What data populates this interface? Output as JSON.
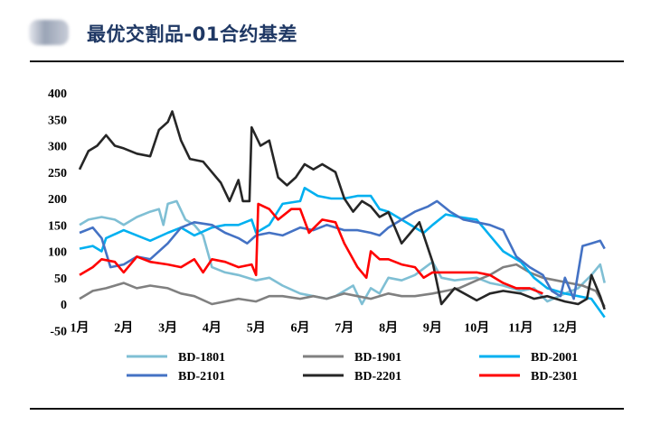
{
  "title": "最优交割品-01合约基差",
  "chart_data": {
    "type": "line",
    "title": "最优交割品-01合约基差",
    "xlabel": "",
    "ylabel": "",
    "ylim": [
      -50,
      400
    ],
    "yticks": [
      400,
      350,
      300,
      250,
      200,
      150,
      100,
      50,
      0,
      -50
    ],
    "xlim": [
      1,
      13
    ],
    "xticks": [
      {
        "x": 1,
        "label": "1月"
      },
      {
        "x": 2,
        "label": "2月"
      },
      {
        "x": 3,
        "label": "3月"
      },
      {
        "x": 4,
        "label": "4月"
      },
      {
        "x": 5,
        "label": "5月"
      },
      {
        "x": 6,
        "label": "6月"
      },
      {
        "x": 7,
        "label": "7月"
      },
      {
        "x": 8,
        "label": "8月"
      },
      {
        "x": 9,
        "label": "9月"
      },
      {
        "x": 10,
        "label": "10月"
      },
      {
        "x": 11,
        "label": "11月"
      },
      {
        "x": 12,
        "label": "12月"
      }
    ],
    "grid": false,
    "legend_position": "bottom",
    "series": [
      {
        "name": "BD-1801",
        "color": "#7fbfd4",
        "points": [
          [
            1.0,
            150
          ],
          [
            1.2,
            160
          ],
          [
            1.5,
            165
          ],
          [
            1.8,
            160
          ],
          [
            2.0,
            150
          ],
          [
            2.3,
            165
          ],
          [
            2.6,
            175
          ],
          [
            2.8,
            180
          ],
          [
            2.9,
            150
          ],
          [
            3.0,
            190
          ],
          [
            3.2,
            195
          ],
          [
            3.4,
            160
          ],
          [
            3.6,
            150
          ],
          [
            3.8,
            130
          ],
          [
            4.0,
            70
          ],
          [
            4.3,
            60
          ],
          [
            4.6,
            55
          ],
          [
            5.0,
            45
          ],
          [
            5.3,
            50
          ],
          [
            5.6,
            35
          ],
          [
            6.0,
            20
          ],
          [
            6.3,
            15
          ],
          [
            6.6,
            10
          ],
          [
            6.8,
            15
          ],
          [
            7.0,
            25
          ],
          [
            7.2,
            35
          ],
          [
            7.4,
            0
          ],
          [
            7.6,
            30
          ],
          [
            7.8,
            20
          ],
          [
            8.0,
            50
          ],
          [
            8.3,
            45
          ],
          [
            8.6,
            55
          ],
          [
            9.0,
            80
          ],
          [
            9.2,
            50
          ],
          [
            9.5,
            45
          ],
          [
            10.0,
            50
          ],
          [
            10.3,
            40
          ],
          [
            10.6,
            35
          ],
          [
            11.0,
            25
          ],
          [
            11.3,
            30
          ],
          [
            11.6,
            5
          ],
          [
            12.0,
            20
          ],
          [
            12.3,
            30
          ],
          [
            12.6,
            55
          ],
          [
            12.8,
            75
          ],
          [
            12.9,
            40
          ]
        ]
      },
      {
        "name": "BD-1901",
        "color": "#808080",
        "points": [
          [
            1.0,
            10
          ],
          [
            1.3,
            25
          ],
          [
            1.6,
            30
          ],
          [
            2.0,
            40
          ],
          [
            2.3,
            30
          ],
          [
            2.6,
            35
          ],
          [
            3.0,
            30
          ],
          [
            3.3,
            20
          ],
          [
            3.6,
            15
          ],
          [
            4.0,
            0
          ],
          [
            4.3,
            5
          ],
          [
            4.6,
            10
          ],
          [
            5.0,
            5
          ],
          [
            5.3,
            15
          ],
          [
            5.6,
            15
          ],
          [
            6.0,
            10
          ],
          [
            6.3,
            15
          ],
          [
            6.6,
            10
          ],
          [
            7.0,
            20
          ],
          [
            7.3,
            15
          ],
          [
            7.6,
            10
          ],
          [
            8.0,
            20
          ],
          [
            8.3,
            15
          ],
          [
            8.6,
            15
          ],
          [
            9.0,
            20
          ],
          [
            9.3,
            25
          ],
          [
            9.6,
            30
          ],
          [
            10.0,
            45
          ],
          [
            10.3,
            55
          ],
          [
            10.6,
            70
          ],
          [
            10.9,
            75
          ],
          [
            11.2,
            60
          ],
          [
            11.5,
            50
          ],
          [
            11.8,
            45
          ],
          [
            12.1,
            40
          ],
          [
            12.4,
            35
          ],
          [
            12.7,
            25
          ],
          [
            12.9,
            -5
          ]
        ]
      },
      {
        "name": "BD-2001",
        "color": "#00b0f0",
        "points": [
          [
            1.0,
            105
          ],
          [
            1.3,
            110
          ],
          [
            1.5,
            100
          ],
          [
            1.6,
            125
          ],
          [
            2.0,
            140
          ],
          [
            2.3,
            130
          ],
          [
            2.6,
            120
          ],
          [
            3.0,
            135
          ],
          [
            3.3,
            145
          ],
          [
            3.6,
            130
          ],
          [
            4.0,
            145
          ],
          [
            4.3,
            150
          ],
          [
            4.6,
            150
          ],
          [
            4.9,
            160
          ],
          [
            5.0,
            135
          ],
          [
            5.3,
            150
          ],
          [
            5.6,
            190
          ],
          [
            6.0,
            195
          ],
          [
            6.1,
            220
          ],
          [
            6.4,
            205
          ],
          [
            6.7,
            200
          ],
          [
            7.0,
            200
          ],
          [
            7.3,
            205
          ],
          [
            7.6,
            205
          ],
          [
            7.8,
            180
          ],
          [
            8.0,
            175
          ],
          [
            8.3,
            160
          ],
          [
            8.5,
            150
          ],
          [
            8.8,
            135
          ],
          [
            9.0,
            150
          ],
          [
            9.3,
            170
          ],
          [
            9.6,
            165
          ],
          [
            10.0,
            160
          ],
          [
            10.3,
            130
          ],
          [
            10.6,
            100
          ],
          [
            11.0,
            80
          ],
          [
            11.3,
            50
          ],
          [
            11.6,
            30
          ],
          [
            12.0,
            20
          ],
          [
            12.3,
            15
          ],
          [
            12.6,
            10
          ],
          [
            12.9,
            -25
          ]
        ]
      },
      {
        "name": "BD-2101",
        "color": "#4472c4",
        "points": [
          [
            1.0,
            135
          ],
          [
            1.3,
            145
          ],
          [
            1.5,
            125
          ],
          [
            1.7,
            70
          ],
          [
            2.0,
            75
          ],
          [
            2.3,
            90
          ],
          [
            2.6,
            85
          ],
          [
            3.0,
            115
          ],
          [
            3.3,
            145
          ],
          [
            3.6,
            155
          ],
          [
            4.0,
            150
          ],
          [
            4.3,
            135
          ],
          [
            4.6,
            125
          ],
          [
            4.8,
            115
          ],
          [
            5.0,
            130
          ],
          [
            5.3,
            135
          ],
          [
            5.6,
            130
          ],
          [
            6.0,
            145
          ],
          [
            6.3,
            140
          ],
          [
            6.6,
            150
          ],
          [
            7.0,
            140
          ],
          [
            7.3,
            140
          ],
          [
            7.6,
            135
          ],
          [
            7.8,
            130
          ],
          [
            8.0,
            145
          ],
          [
            8.3,
            160
          ],
          [
            8.6,
            175
          ],
          [
            8.9,
            185
          ],
          [
            9.1,
            195
          ],
          [
            9.4,
            175
          ],
          [
            9.7,
            160
          ],
          [
            10.0,
            155
          ],
          [
            10.3,
            150
          ],
          [
            10.6,
            140
          ],
          [
            10.9,
            90
          ],
          [
            11.2,
            70
          ],
          [
            11.5,
            55
          ],
          [
            11.7,
            25
          ],
          [
            11.9,
            15
          ],
          [
            12.0,
            50
          ],
          [
            12.2,
            10
          ],
          [
            12.4,
            110
          ],
          [
            12.6,
            115
          ],
          [
            12.8,
            120
          ],
          [
            12.9,
            105
          ]
        ]
      },
      {
        "name": "BD-2201",
        "color": "#262626",
        "points": [
          [
            1.0,
            255
          ],
          [
            1.2,
            290
          ],
          [
            1.4,
            300
          ],
          [
            1.6,
            320
          ],
          [
            1.8,
            300
          ],
          [
            2.0,
            295
          ],
          [
            2.3,
            285
          ],
          [
            2.6,
            280
          ],
          [
            2.8,
            330
          ],
          [
            3.0,
            345
          ],
          [
            3.1,
            365
          ],
          [
            3.3,
            310
          ],
          [
            3.5,
            275
          ],
          [
            3.8,
            270
          ],
          [
            4.0,
            250
          ],
          [
            4.2,
            230
          ],
          [
            4.4,
            195
          ],
          [
            4.6,
            235
          ],
          [
            4.7,
            195
          ],
          [
            4.85,
            195
          ],
          [
            4.9,
            335
          ],
          [
            5.1,
            300
          ],
          [
            5.3,
            310
          ],
          [
            5.5,
            240
          ],
          [
            5.7,
            225
          ],
          [
            5.9,
            240
          ],
          [
            6.1,
            265
          ],
          [
            6.3,
            255
          ],
          [
            6.5,
            265
          ],
          [
            6.8,
            250
          ],
          [
            7.0,
            200
          ],
          [
            7.2,
            175
          ],
          [
            7.4,
            195
          ],
          [
            7.6,
            185
          ],
          [
            7.8,
            165
          ],
          [
            8.0,
            174
          ],
          [
            8.3,
            115
          ],
          [
            8.5,
            135
          ],
          [
            8.7,
            155
          ],
          [
            9.0,
            80
          ],
          [
            9.2,
            0
          ],
          [
            9.5,
            30
          ],
          [
            10.0,
            7
          ],
          [
            10.3,
            20
          ],
          [
            10.6,
            25
          ],
          [
            11.0,
            20
          ],
          [
            11.3,
            10
          ],
          [
            11.6,
            15
          ],
          [
            12.0,
            5
          ],
          [
            12.3,
            0
          ],
          [
            12.5,
            10
          ],
          [
            12.6,
            55
          ],
          [
            12.8,
            15
          ],
          [
            12.9,
            -10
          ]
        ]
      },
      {
        "name": "BD-2301",
        "color": "#ff0000",
        "points": [
          [
            1.0,
            55
          ],
          [
            1.3,
            70
          ],
          [
            1.5,
            85
          ],
          [
            1.8,
            80
          ],
          [
            2.0,
            60
          ],
          [
            2.3,
            90
          ],
          [
            2.6,
            80
          ],
          [
            3.0,
            75
          ],
          [
            3.3,
            70
          ],
          [
            3.6,
            85
          ],
          [
            3.8,
            60
          ],
          [
            4.0,
            85
          ],
          [
            4.3,
            80
          ],
          [
            4.6,
            70
          ],
          [
            4.9,
            75
          ],
          [
            5.0,
            55
          ],
          [
            5.05,
            190
          ],
          [
            5.3,
            180
          ],
          [
            5.5,
            160
          ],
          [
            5.8,
            180
          ],
          [
            6.0,
            180
          ],
          [
            6.2,
            135
          ],
          [
            6.5,
            160
          ],
          [
            6.8,
            155
          ],
          [
            7.0,
            115
          ],
          [
            7.3,
            70
          ],
          [
            7.5,
            50
          ],
          [
            7.6,
            100
          ],
          [
            7.8,
            85
          ],
          [
            8.0,
            85
          ],
          [
            8.3,
            75
          ],
          [
            8.6,
            70
          ],
          [
            8.8,
            50
          ],
          [
            9.0,
            60
          ],
          [
            9.5,
            60
          ],
          [
            10.0,
            60
          ],
          [
            10.3,
            55
          ],
          [
            10.6,
            40
          ],
          [
            10.9,
            30
          ],
          [
            11.2,
            30
          ],
          [
            11.5,
            20
          ]
        ]
      }
    ]
  }
}
